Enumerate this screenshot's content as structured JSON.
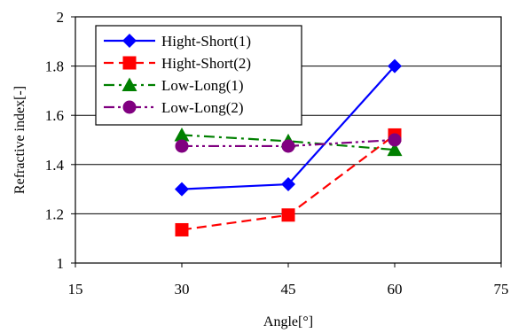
{
  "chart_data": {
    "type": "line",
    "title": "",
    "xlabel": "Angle[°]",
    "ylabel": "Refractive index[-]",
    "xlim": [
      15,
      75
    ],
    "ylim": [
      1,
      2
    ],
    "xticks": [
      "15",
      "30",
      "45",
      "60",
      "75"
    ],
    "yticks": [
      "1",
      "1.2",
      "1.4",
      "1.6",
      "1.8",
      "2"
    ],
    "grid": "horizontal",
    "legend_position": "top-left",
    "x": [
      30,
      45,
      60
    ],
    "series": [
      {
        "name": "Hight-Short(1)",
        "values": [
          1.3,
          1.32,
          1.8
        ],
        "color": "#0000ff",
        "marker": "diamond",
        "dash": "solid"
      },
      {
        "name": "Hight-Short(2)",
        "values": [
          1.135,
          1.195,
          1.52
        ],
        "color": "#ff0000",
        "marker": "square",
        "dash": "dashed"
      },
      {
        "name": "Low-Long(1)",
        "values": [
          1.52,
          1.495,
          1.46
        ],
        "color": "#008000",
        "marker": "triangle",
        "dash": "dashdot"
      },
      {
        "name": "Low-Long(2)",
        "values": [
          1.475,
          1.475,
          1.5
        ],
        "color": "#800080",
        "marker": "circle",
        "dash": "dashdotdot"
      }
    ]
  }
}
